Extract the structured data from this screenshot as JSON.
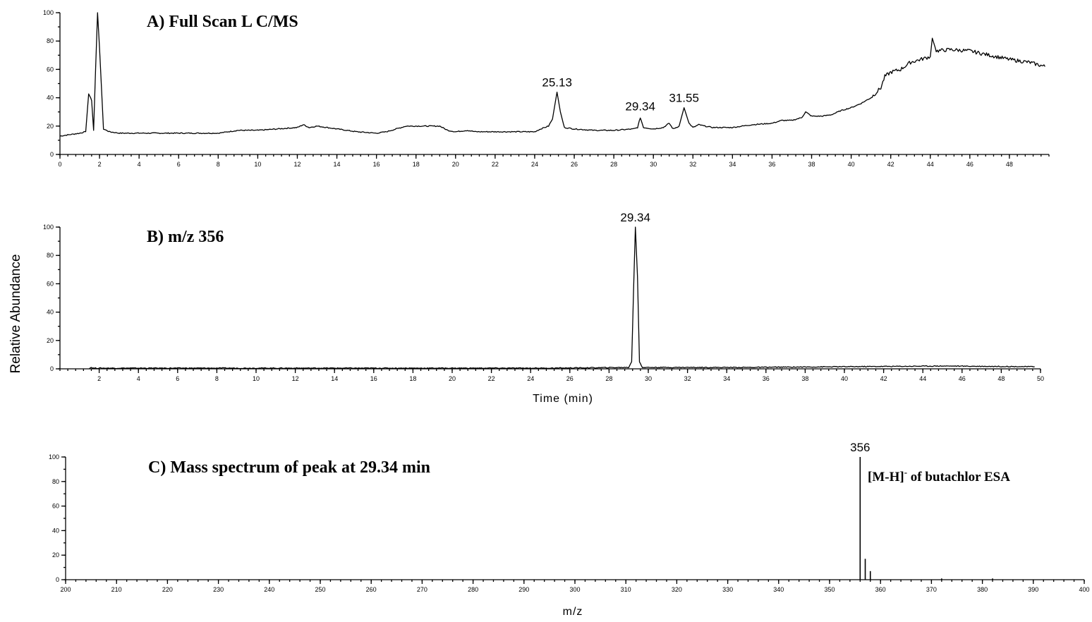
{
  "figure": {
    "ylabel": "Relative Abundance"
  },
  "chart_data": [
    {
      "type": "line",
      "title": "A) Full Scan L C/MS",
      "xlabel": "",
      "ylabel": "Relative Abundance",
      "xlim": [
        0,
        50
      ],
      "ylim": [
        0,
        100
      ],
      "x_ticks": [
        0,
        2,
        4,
        6,
        8,
        10,
        12,
        14,
        16,
        18,
        20,
        22,
        24,
        26,
        28,
        30,
        32,
        34,
        36,
        38,
        40,
        42,
        44,
        46,
        48
      ],
      "x_tick_labels": [
        "0",
        "2",
        "4",
        "6",
        "8",
        "10",
        "12",
        "14",
        "16",
        "18",
        "20",
        "22",
        "24",
        "26",
        "28",
        "30",
        "32",
        "34",
        "36",
        "38",
        "40",
        "42",
        "44",
        "46",
        "48"
      ],
      "y_ticks": [
        0,
        20,
        40,
        60,
        80,
        100
      ],
      "y_tick_labels": [
        "0",
        "20",
        "40",
        "60",
        "80",
        "100"
      ],
      "annotations": [
        {
          "text": "25.13",
          "x": 25.13,
          "y": 44
        },
        {
          "text": "29.34",
          "x": 29.34,
          "y": 27
        },
        {
          "text": "31.55",
          "x": 31.55,
          "y": 33
        }
      ],
      "series": [
        {
          "points": [
            [
              0,
              13
            ],
            [
              0.5,
              14
            ],
            [
              1.0,
              15
            ],
            [
              1.3,
              16
            ],
            [
              1.45,
              43
            ],
            [
              1.6,
              38
            ],
            [
              1.7,
              17
            ],
            [
              1.8,
              60
            ],
            [
              1.9,
              100
            ],
            [
              2.0,
              75
            ],
            [
              2.2,
              18
            ],
            [
              2.5,
              16
            ],
            [
              3.0,
              15
            ],
            [
              4.0,
              15
            ],
            [
              5.0,
              15
            ],
            [
              6.0,
              15
            ],
            [
              7.0,
              15
            ],
            [
              8.0,
              15
            ],
            [
              9.0,
              17
            ],
            [
              10.0,
              17
            ],
            [
              11.0,
              18
            ],
            [
              12.0,
              19
            ],
            [
              12.3,
              21
            ],
            [
              12.6,
              19
            ],
            [
              13.0,
              20
            ],
            [
              14.0,
              18
            ],
            [
              15.0,
              16
            ],
            [
              16.0,
              15
            ],
            [
              16.5,
              16
            ],
            [
              17.0,
              18
            ],
            [
              17.5,
              20
            ],
            [
              18.5,
              20
            ],
            [
              19.2,
              20
            ],
            [
              19.6,
              17
            ],
            [
              20.0,
              16
            ],
            [
              20.6,
              17
            ],
            [
              21.0,
              16
            ],
            [
              22.0,
              16
            ],
            [
              23.0,
              16
            ],
            [
              24.0,
              16
            ],
            [
              24.3,
              18
            ],
            [
              24.7,
              20
            ],
            [
              24.9,
              25
            ],
            [
              25.13,
              44
            ],
            [
              25.3,
              30
            ],
            [
              25.5,
              19
            ],
            [
              26.0,
              18
            ],
            [
              27.0,
              17
            ],
            [
              28.0,
              17
            ],
            [
              29.0,
              18
            ],
            [
              29.2,
              19
            ],
            [
              29.34,
              26
            ],
            [
              29.5,
              19
            ],
            [
              30.0,
              18
            ],
            [
              30.5,
              19
            ],
            [
              30.8,
              22
            ],
            [
              31.0,
              18
            ],
            [
              31.3,
              20
            ],
            [
              31.55,
              33
            ],
            [
              31.8,
              22
            ],
            [
              32.0,
              19
            ],
            [
              32.3,
              21
            ],
            [
              32.6,
              20
            ],
            [
              33.0,
              19
            ],
            [
              34.0,
              19
            ],
            [
              34.5,
              20
            ],
            [
              35.0,
              21
            ],
            [
              36.0,
              22
            ],
            [
              36.5,
              24
            ],
            [
              37.0,
              24
            ],
            [
              37.5,
              26
            ],
            [
              37.7,
              30
            ],
            [
              38.0,
              27
            ],
            [
              38.5,
              27
            ],
            [
              39.0,
              28
            ],
            [
              39.5,
              31
            ],
            [
              40.0,
              33
            ],
            [
              40.5,
              36
            ],
            [
              41.0,
              40
            ],
            [
              41.5,
              47
            ],
            [
              41.7,
              55
            ],
            [
              42.0,
              58
            ],
            [
              42.5,
              60
            ],
            [
              43.0,
              65
            ],
            [
              43.5,
              67
            ],
            [
              44.0,
              69
            ],
            [
              44.1,
              82
            ],
            [
              44.3,
              73
            ],
            [
              45.0,
              74
            ],
            [
              46.0,
              73
            ],
            [
              47.0,
              70
            ],
            [
              48.0,
              67
            ],
            [
              49.0,
              65
            ],
            [
              49.8,
              62
            ]
          ]
        }
      ]
    },
    {
      "type": "line",
      "title": "B) m/z 356",
      "xlabel": "Time (min)",
      "ylabel": "Relative Abundance",
      "xlim": [
        0,
        50
      ],
      "ylim": [
        0,
        100
      ],
      "x_ticks": [
        2,
        4,
        6,
        8,
        10,
        12,
        14,
        16,
        18,
        20,
        22,
        24,
        26,
        28,
        30,
        32,
        34,
        36,
        38,
        40,
        42,
        44,
        46,
        48,
        50
      ],
      "x_tick_labels": [
        "2",
        "4",
        "6",
        "8",
        "10",
        "12",
        "14",
        "16",
        "18",
        "20",
        "22",
        "24",
        "26",
        "28",
        "30",
        "32",
        "34",
        "36",
        "38",
        "40",
        "42",
        "44",
        "46",
        "48",
        "50"
      ],
      "y_ticks": [
        0,
        20,
        40,
        60,
        80,
        100
      ],
      "y_tick_labels": [
        "0",
        "20",
        "40",
        "60",
        "80",
        "100"
      ],
      "annotations": [
        {
          "text": "29.34",
          "x": 29.34,
          "y": 100
        }
      ],
      "series": [
        {
          "points": [
            [
              1.5,
              0.5
            ],
            [
              1.6,
              1
            ],
            [
              1.7,
              0.5
            ],
            [
              25.0,
              0.5
            ],
            [
              29.0,
              1
            ],
            [
              29.15,
              5
            ],
            [
              29.25,
              55
            ],
            [
              29.34,
              100
            ],
            [
              29.45,
              65
            ],
            [
              29.55,
              5
            ],
            [
              29.7,
              1
            ],
            [
              30.0,
              1
            ],
            [
              35.0,
              1
            ],
            [
              40.0,
              1.5
            ],
            [
              45.0,
              2
            ],
            [
              49.7,
              1.5
            ]
          ]
        }
      ]
    },
    {
      "type": "bar",
      "title": "C) Mass spectrum of peak at 29.34 min",
      "xlabel": "m/z",
      "ylabel": "Relative Abundance",
      "xlim": [
        200,
        400
      ],
      "ylim": [
        0,
        100
      ],
      "x_ticks": [
        200,
        210,
        220,
        230,
        240,
        250,
        260,
        270,
        280,
        290,
        300,
        310,
        320,
        330,
        340,
        350,
        360,
        370,
        380,
        390,
        400
      ],
      "x_tick_labels": [
        "200",
        "210",
        "220",
        "230",
        "240",
        "250",
        "260",
        "270",
        "280",
        "290",
        "300",
        "310",
        "320",
        "330",
        "340",
        "350",
        "360",
        "370",
        "380",
        "390",
        "400"
      ],
      "y_ticks": [
        0,
        20,
        40,
        60,
        80,
        100
      ],
      "y_tick_labels": [
        "0",
        "20",
        "40",
        "60",
        "80",
        "100"
      ],
      "annotations": [
        {
          "text": "356",
          "x": 356,
          "y": 100
        },
        {
          "text": "[M-H]",
          "sup": "-",
          "text_after": " of butachlor ESA"
        }
      ],
      "x": [
        356,
        357,
        358,
        372,
        382
      ],
      "values": [
        100,
        17,
        7,
        1,
        1
      ]
    }
  ]
}
